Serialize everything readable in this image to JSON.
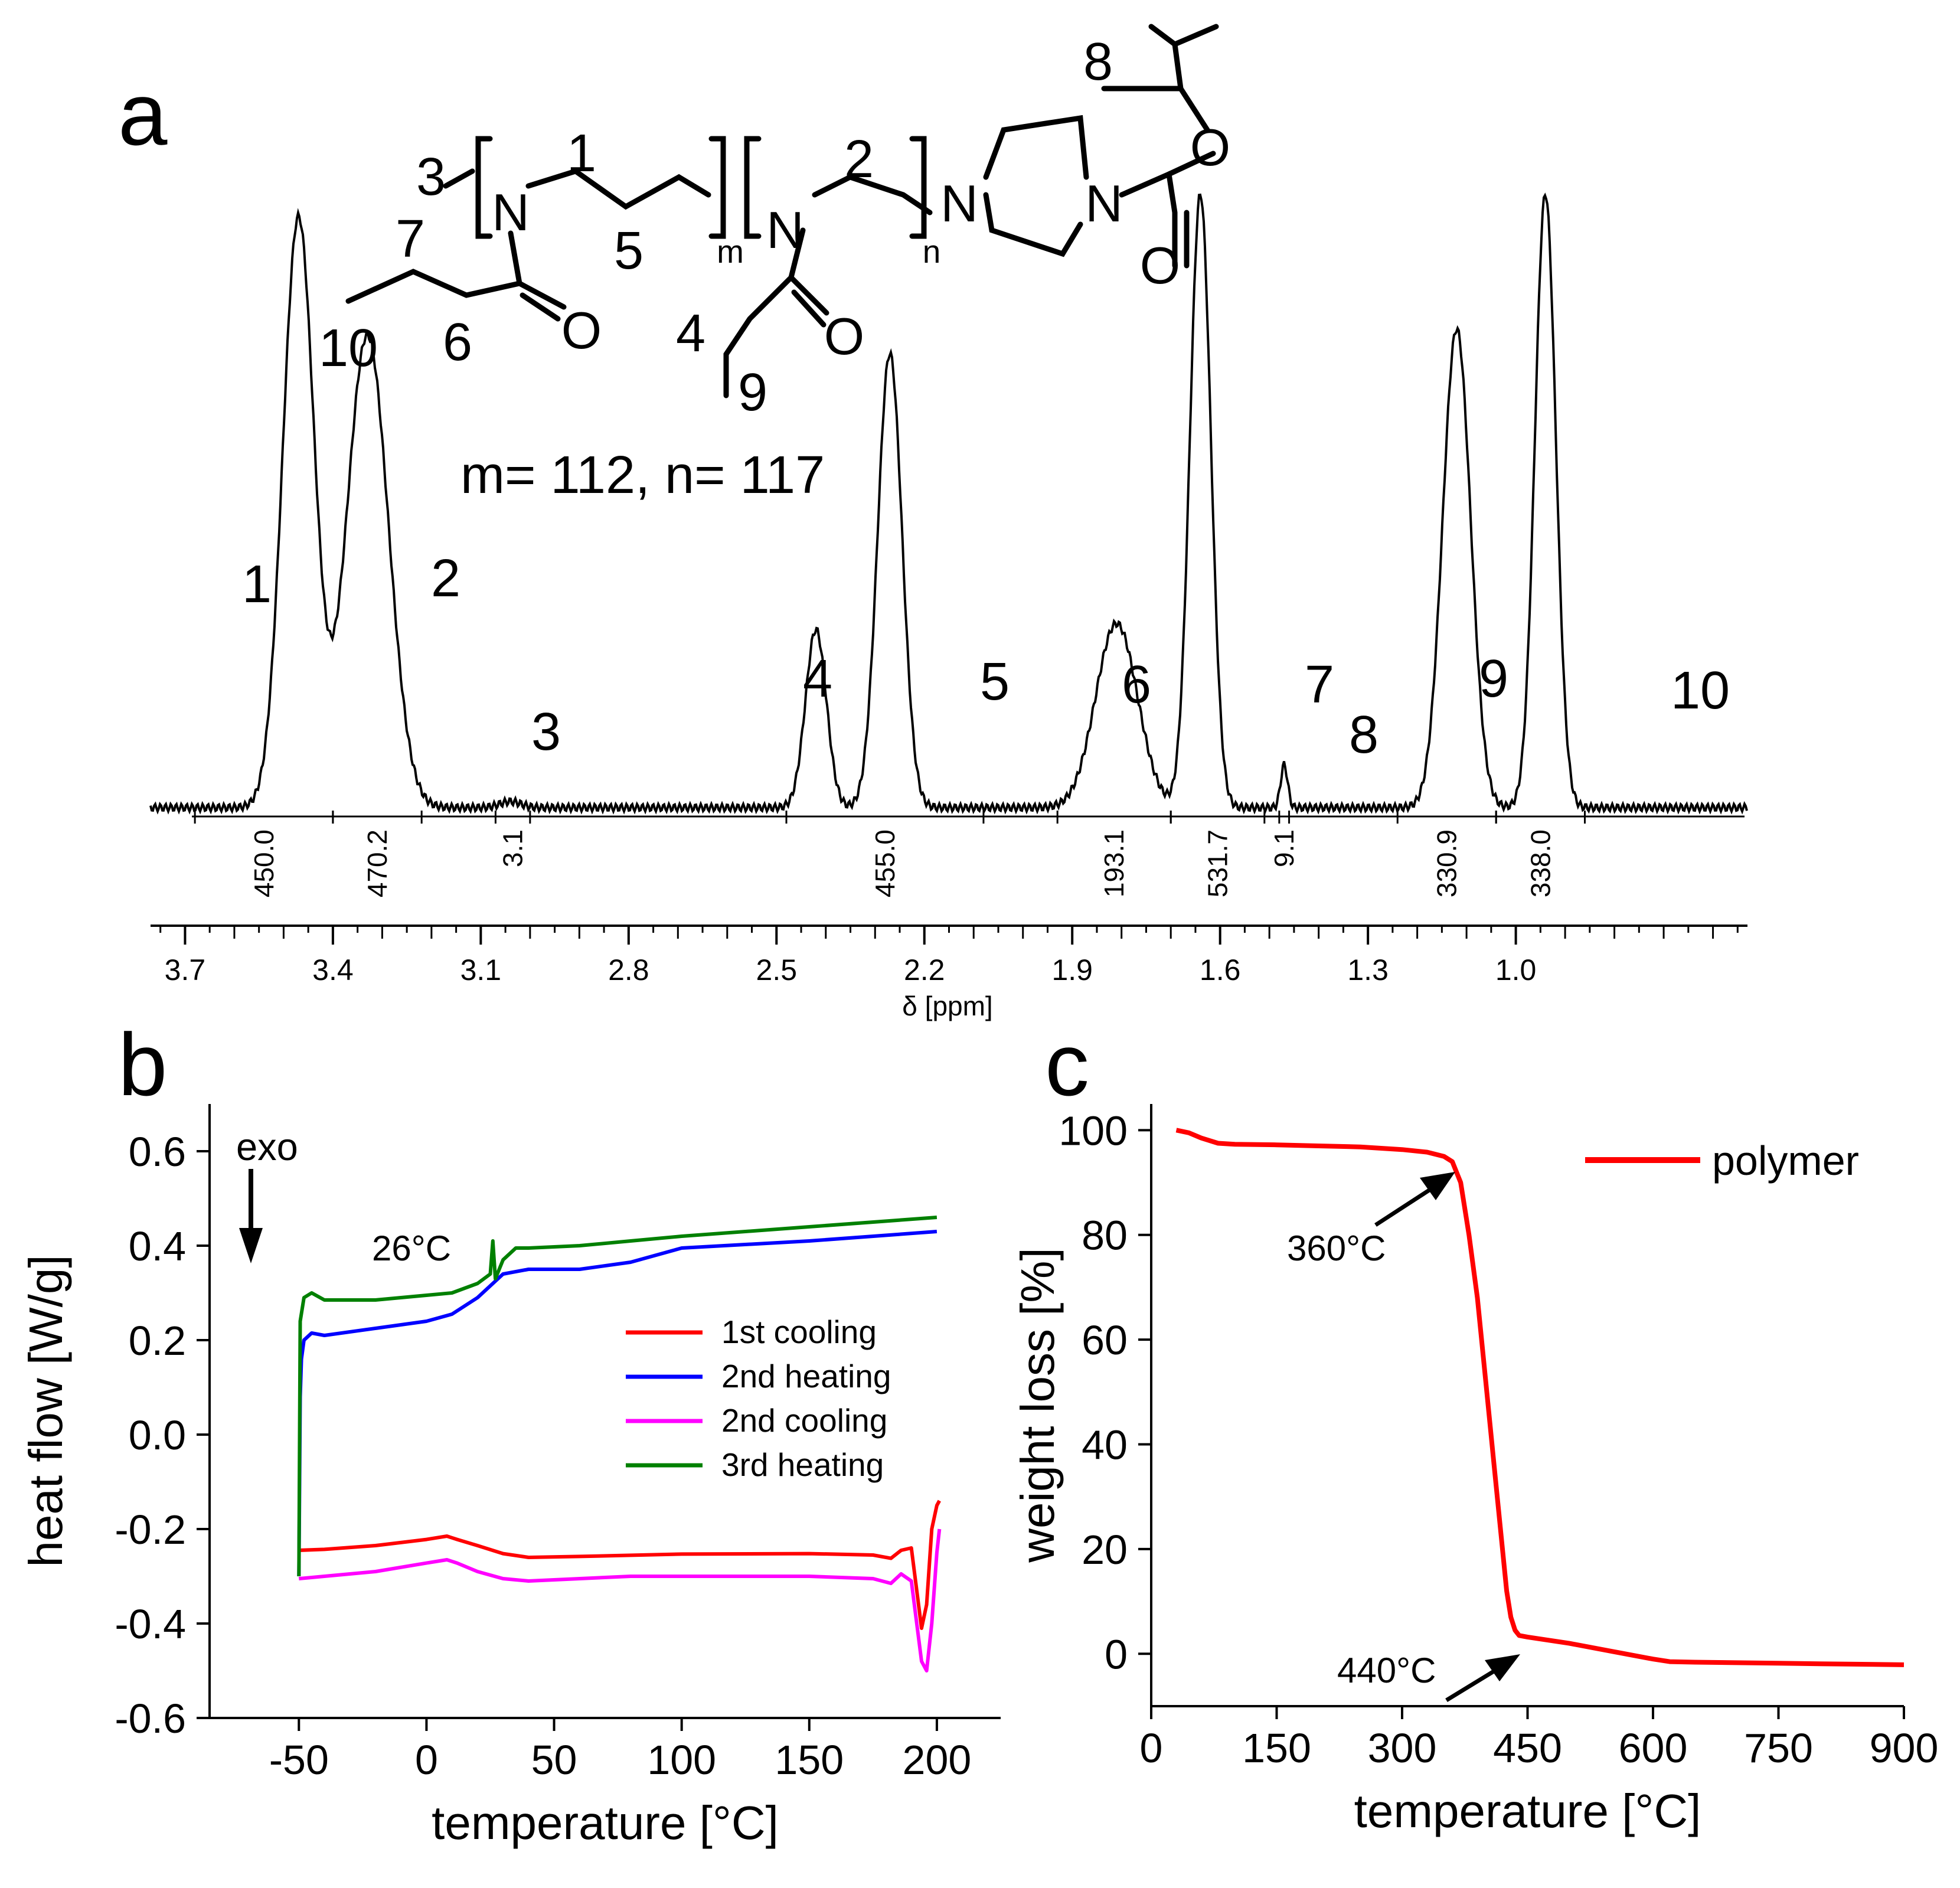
{
  "panel_labels": {
    "a": "a",
    "b": "b",
    "c": "c"
  },
  "structure": {
    "numbers": [
      "1",
      "2",
      "3",
      "4",
      "5",
      "6",
      "7",
      "8",
      "9",
      "10"
    ],
    "atoms": [
      "N",
      "N",
      "N",
      "N",
      "O",
      "O",
      "O",
      "O"
    ],
    "subscripts": [
      "m",
      "n"
    ],
    "composition": "m= 112, n= 117"
  },
  "chart_data": [
    {
      "id": "nmr",
      "type": "line",
      "xlabel": "δ [ppm]",
      "x_reversed": true,
      "xlim": [
        3.77,
        0.53
      ],
      "xticks": [
        "3.7",
        "3.4",
        "3.1",
        "2.8",
        "2.5",
        "2.2",
        "1.9",
        "1.6",
        "1.3",
        "1.0"
      ],
      "xtick_values": [
        3.7,
        3.4,
        3.1,
        2.8,
        2.5,
        2.2,
        1.9,
        1.6,
        1.3,
        1.0
      ],
      "peaks": [
        {
          "label": "1",
          "x": 3.47,
          "height": 0.96
        },
        {
          "label": "2",
          "x": 3.33,
          "height": 0.77
        },
        {
          "label": "3",
          "x": 3.04,
          "height": 0.01
        },
        {
          "label": "4",
          "x": 2.42,
          "height": 0.29
        },
        {
          "label": "5",
          "x": 2.27,
          "height": 0.74
        },
        {
          "label": "6",
          "x": 1.81,
          "height": 0.3
        },
        {
          "label": "7",
          "x": 1.64,
          "height": 1.0
        },
        {
          "label": "8",
          "x": 1.47,
          "height": 0.07
        },
        {
          "label": "9",
          "x": 1.12,
          "height": 0.78
        },
        {
          "label": "10",
          "x": 0.94,
          "height": 1.0
        }
      ],
      "integrals": [
        {
          "value": "450.0",
          "from": 3.68,
          "to": 3.4
        },
        {
          "value": "470.2",
          "from": 3.4,
          "to": 3.22
        },
        {
          "value": "3.1",
          "from": 3.07,
          "to": 3.0
        },
        {
          "value": "455.0",
          "from": 2.48,
          "to": 2.08
        },
        {
          "value": "193.1",
          "from": 1.93,
          "to": 1.7
        },
        {
          "value": "531.7",
          "from": 1.7,
          "to": 1.51
        },
        {
          "value": "9.1",
          "from": 1.48,
          "to": 1.46
        },
        {
          "value": "330.9",
          "from": 1.24,
          "to": 1.04
        },
        {
          "value": "338.0",
          "from": 1.04,
          "to": 0.86
        }
      ]
    },
    {
      "id": "dsc",
      "type": "line",
      "xlabel": "temperature [°C]",
      "ylabel": "heat flow [W/g]",
      "xlim": [
        -85,
        225
      ],
      "ylim": [
        -0.6,
        0.7
      ],
      "xticks": [
        "-50",
        "0",
        "50",
        "100",
        "150",
        "200"
      ],
      "xtick_values": [
        -50,
        0,
        50,
        100,
        150,
        200
      ],
      "yticks": [
        "-0.6",
        "-0.4",
        "-0.2",
        "0.0",
        "0.2",
        "0.4",
        "0.6"
      ],
      "ytick_values": [
        -0.6,
        -0.4,
        -0.2,
        0.0,
        0.2,
        0.4,
        0.6
      ],
      "legend_position": "center-right",
      "annotations": [
        "exo",
        "26°C"
      ],
      "series": [
        {
          "name": "1st cooling",
          "color": "#ff0000",
          "x": [
            -50,
            -40,
            -20,
            0,
            8,
            12,
            20,
            30,
            40,
            60,
            100,
            150,
            175,
            182,
            186,
            190,
            194,
            196,
            198,
            200,
            201
          ],
          "y": [
            -0.245,
            -0.243,
            -0.235,
            -0.222,
            -0.215,
            -0.222,
            -0.235,
            -0.252,
            -0.26,
            -0.258,
            -0.253,
            -0.252,
            -0.255,
            -0.262,
            -0.245,
            -0.24,
            -0.41,
            -0.36,
            -0.2,
            -0.15,
            -0.14
          ]
        },
        {
          "name": "2nd heating",
          "color": "#0000ff",
          "x": [
            -50,
            -49.5,
            -49,
            -48,
            -45,
            -40,
            -20,
            0,
            10,
            20,
            30,
            40,
            60,
            80,
            100,
            150,
            200
          ],
          "y": [
            -0.3,
            0.08,
            0.16,
            0.2,
            0.215,
            0.21,
            0.225,
            0.24,
            0.255,
            0.29,
            0.34,
            0.35,
            0.35,
            0.365,
            0.395,
            0.41,
            0.43
          ]
        },
        {
          "name": "2nd cooling",
          "color": "#ff00ff",
          "x": [
            -50,
            -40,
            -20,
            0,
            8,
            12,
            20,
            30,
            40,
            60,
            80,
            100,
            150,
            175,
            182,
            186,
            190,
            194,
            196,
            198,
            200,
            201
          ],
          "y": [
            -0.305,
            -0.3,
            -0.29,
            -0.272,
            -0.265,
            -0.272,
            -0.29,
            -0.305,
            -0.31,
            -0.305,
            -0.3,
            -0.3,
            -0.3,
            -0.305,
            -0.315,
            -0.295,
            -0.31,
            -0.48,
            -0.5,
            -0.4,
            -0.25,
            -0.2
          ]
        },
        {
          "name": "3rd heating",
          "color": "#008000",
          "x": [
            -50,
            -49.5,
            -48,
            -45,
            -40,
            -20,
            0,
            10,
            20,
            25,
            26,
            27,
            30,
            35,
            40,
            60,
            80,
            100,
            150,
            200
          ],
          "y": [
            -0.3,
            0.24,
            0.29,
            0.3,
            0.285,
            0.285,
            0.295,
            0.3,
            0.32,
            0.34,
            0.41,
            0.33,
            0.37,
            0.395,
            0.395,
            0.4,
            0.41,
            0.42,
            0.44,
            0.46
          ]
        }
      ]
    },
    {
      "id": "tga",
      "type": "line",
      "xlabel": "temperature [°C]",
      "ylabel": "weight loss [%]",
      "xlim": [
        0,
        900
      ],
      "ylim": [
        -10,
        105
      ],
      "xticks": [
        "0",
        "150",
        "300",
        "450",
        "600",
        "750",
        "900"
      ],
      "xtick_values": [
        0,
        150,
        300,
        450,
        600,
        750,
        900
      ],
      "yticks": [
        "0",
        "20",
        "40",
        "60",
        "80",
        "100"
      ],
      "ytick_values": [
        0,
        20,
        40,
        60,
        80,
        100
      ],
      "legend_position": "top-right",
      "annotations": [
        "360°C",
        "440°C"
      ],
      "series": [
        {
          "name": "polymer",
          "color": "#ff0000",
          "x": [
            30,
            45,
            60,
            80,
            100,
            150,
            200,
            250,
            300,
            330,
            350,
            360,
            370,
            380,
            390,
            400,
            410,
            420,
            425,
            430,
            435,
            440,
            450,
            500,
            550,
            600,
            620,
            650,
            700,
            750,
            800,
            850,
            900
          ],
          "y": [
            100,
            99.5,
            98.5,
            97.5,
            97.3,
            97.2,
            97,
            96.8,
            96.3,
            95.8,
            95,
            94,
            90,
            80,
            68,
            52,
            36,
            20,
            12,
            7,
            4.5,
            3.5,
            3.2,
            2,
            0.5,
            -1,
            -1.5,
            -1.6,
            -1.7,
            -1.8,
            -1.9,
            -2,
            -2.1
          ]
        }
      ]
    }
  ]
}
